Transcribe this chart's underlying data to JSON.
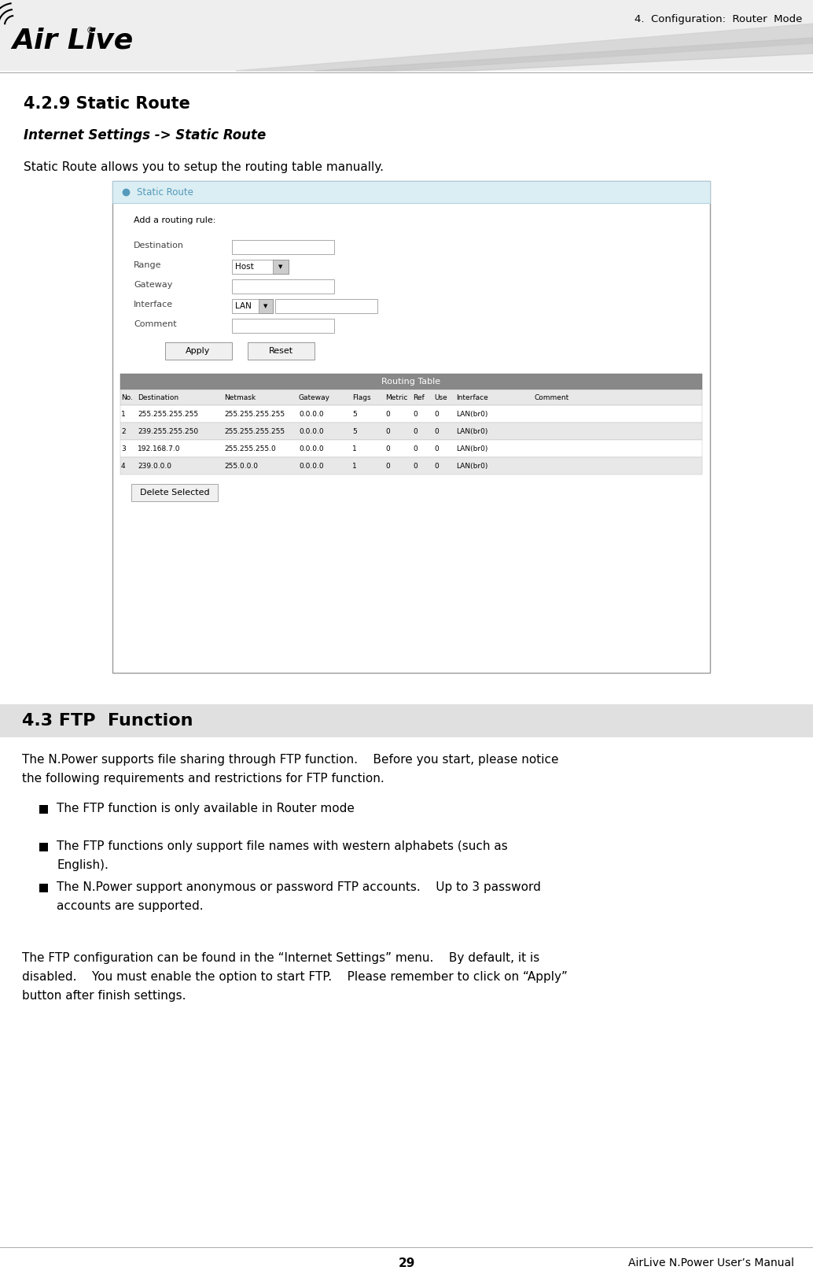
{
  "page_width": 10.34,
  "page_height": 16.19,
  "bg_color": "#ffffff",
  "header": {
    "title_right": "4.  Configuration:  Router  Mode",
    "header_bg": "#eeeeee"
  },
  "section_429": {
    "title": "4.2.9 Static Route",
    "subtitle": "Internet Settings -> Static Route",
    "body": "Static Route allows you to setup the routing table manually."
  },
  "screenshot": {
    "panel_title": "Static Route",
    "form_fields": [
      "Destination",
      "Range",
      "Gateway",
      "Interface",
      "Comment"
    ],
    "table_title": "Routing Table",
    "table_headers": [
      "No.",
      "Destination",
      "Netmask",
      "Gateway",
      "Flags",
      "Metric",
      "Ref",
      "Use",
      "Interface",
      "Comment"
    ],
    "table_rows": [
      [
        "1",
        "255.255.255.255",
        "255.255.255.255",
        "0.0.0.0",
        "5",
        "0",
        "0",
        "0",
        "LAN(br0)",
        ""
      ],
      [
        "2",
        "239.255.255.250",
        "255.255.255.255",
        "0.0.0.0",
        "5",
        "0",
        "0",
        "0",
        "LAN(br0)",
        ""
      ],
      [
        "3",
        "192.168.7.0",
        "255.255.255.0",
        "0.0.0.0",
        "1",
        "0",
        "0",
        "0",
        "LAN(br0)",
        ""
      ],
      [
        "4",
        "239.0.0.0",
        "255.0.0.0",
        "0.0.0.0",
        "1",
        "0",
        "0",
        "0",
        "LAN(br0)",
        ""
      ]
    ],
    "delete_button": "Delete Selected"
  },
  "section_43": {
    "title": "4.3 FTP  Function",
    "banner_color": "#e0e0e0",
    "title_color": "#000000",
    "body1_line1": "The N.Power supports file sharing through FTP function.    Before you start, please notice",
    "body1_line2": "the following requirements and restrictions for FTP function.",
    "bullets": [
      [
        "The FTP function is only available in Router mode"
      ],
      [
        "The FTP functions only support file names with western alphabets (such as",
        "English)."
      ],
      [
        "The N.Power support anonymous or password FTP accounts.    Up to 3 password",
        "accounts are supported."
      ]
    ],
    "body2_line1": "The FTP configuration can be found in the “Internet Settings” menu.    By default, it is",
    "body2_line2": "disabled.    You must enable the option to start FTP.    Please remember to click on “Apply”",
    "body2_line3": "button after finish settings."
  },
  "footer": {
    "page_number": "29",
    "right_text": "AirLive N.Power User’s Manual"
  }
}
